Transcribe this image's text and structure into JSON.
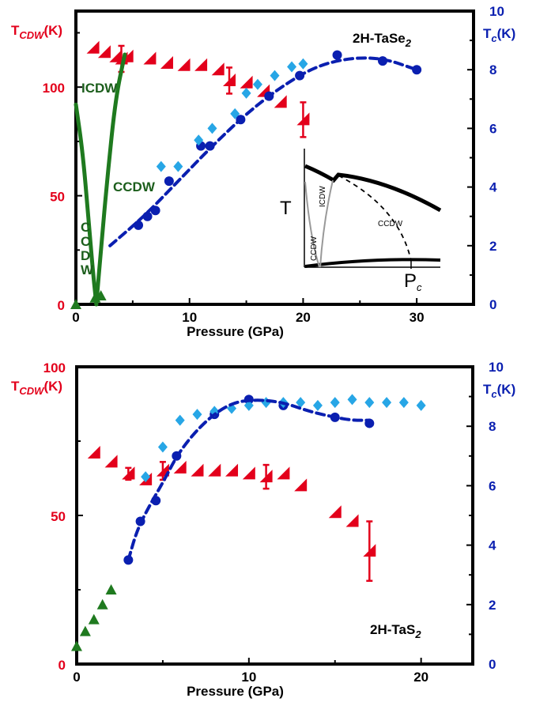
{
  "colors": {
    "tcdw": "#e3001b",
    "tc": "#0a1fb0",
    "tc_diamond": "#27a6e6",
    "green": "#1f7a1f",
    "dark_green": "#1c5e1c"
  },
  "chart_data": [
    {
      "type": "scatter",
      "annotation": "2H-TaSe",
      "annotation_sub": "2",
      "xlabel": "Pressure (GPa)",
      "ylabel_left": "T",
      "ylabel_left_sub": "CDW",
      "ylabel_left_unit": "(K)",
      "ylabel_right": "T",
      "ylabel_right_sub": "c",
      "ylabel_right_unit": "(K)",
      "xlim": [
        0,
        35
      ],
      "ylim_left": [
        0,
        135
      ],
      "ylim_right": [
        0,
        10
      ],
      "xticks": [
        0,
        10,
        20,
        30
      ],
      "yticks_left": [
        0,
        50,
        100
      ],
      "yticks_right": [
        0,
        2,
        4,
        6,
        8,
        10
      ],
      "phase_labels": {
        "icdw": "ICDW",
        "ccdw": "CCDW",
        "ccdw_vertical": [
          "C",
          "C",
          "D",
          "W"
        ]
      },
      "series": [
        {
          "name": "T_CDW",
          "marker": "triangle",
          "axis": "left",
          "points": [
            [
              1.5,
              118
            ],
            [
              2.5,
              116
            ],
            [
              3.5,
              114
            ],
            [
              4.5,
              114
            ],
            [
              6.5,
              113
            ],
            [
              8,
              111
            ],
            [
              9.5,
              110
            ],
            [
              11,
              110
            ],
            [
              12.5,
              108
            ],
            [
              15,
              102
            ],
            [
              16.5,
              98
            ],
            [
              18,
              93
            ]
          ],
          "errorbar_points": [
            [
              4,
              113,
              6
            ],
            [
              13.5,
              103,
              6
            ],
            [
              20,
              85,
              8
            ]
          ]
        },
        {
          "name": "T_c circles",
          "marker": "circle",
          "axis": "right",
          "points": [
            [
              5.5,
              2.7
            ],
            [
              6.3,
              3.0
            ],
            [
              7,
              3.2
            ],
            [
              8.2,
              4.2
            ],
            [
              11,
              5.4
            ],
            [
              11.8,
              5.4
            ],
            [
              14.5,
              6.3
            ],
            [
              17,
              7.1
            ],
            [
              19.7,
              7.8
            ],
            [
              23,
              8.5
            ],
            [
              27,
              8.3
            ],
            [
              30,
              8.0
            ]
          ]
        },
        {
          "name": "T_c diamonds",
          "marker": "diamond",
          "axis": "right",
          "points": [
            [
              7.5,
              4.7
            ],
            [
              9,
              4.7
            ],
            [
              10.8,
              5.6
            ],
            [
              12,
              6.0
            ],
            [
              14,
              6.5
            ],
            [
              15,
              7.2
            ],
            [
              16,
              7.5
            ],
            [
              17.5,
              7.8
            ],
            [
              19,
              8.1
            ],
            [
              20,
              8.2
            ]
          ]
        },
        {
          "name": "Tc dashed fit",
          "style": "dashed",
          "axis": "right",
          "points": [
            [
              3,
              2.0
            ],
            [
              6,
              3.0
            ],
            [
              9,
              4.2
            ],
            [
              12,
              5.4
            ],
            [
              15,
              6.5
            ],
            [
              18,
              7.4
            ],
            [
              21,
              8.1
            ],
            [
              24,
              8.4
            ],
            [
              27,
              8.4
            ],
            [
              30,
              8.0
            ]
          ]
        },
        {
          "name": "ICDW line",
          "style": "solid",
          "axis": "left",
          "points": [
            [
              1.8,
              0
            ],
            [
              2.2,
              25
            ],
            [
              2.8,
              60
            ],
            [
              3.5,
              95
            ],
            [
              4.3,
              115
            ]
          ]
        },
        {
          "name": "CCDW line",
          "style": "solid",
          "axis": "left",
          "points": [
            [
              0,
              92
            ],
            [
              0.6,
              70
            ],
            [
              1.1,
              40
            ],
            [
              1.5,
              15
            ],
            [
              1.8,
              0
            ]
          ]
        }
      ],
      "inset": {
        "y_label": "T",
        "x_label": "P",
        "x_label_sub": "c",
        "labels": [
          "ICDW",
          "CCDW",
          "CCDW"
        ]
      }
    },
    {
      "type": "scatter",
      "annotation": "2H-TaS",
      "annotation_sub": "2",
      "xlabel": "Pressure (GPa)",
      "ylabel_left": "T",
      "ylabel_left_sub": "CDW",
      "ylabel_left_unit": "(K)",
      "ylabel_right": "T",
      "ylabel_right_sub": "c",
      "ylabel_right_unit": "(K)",
      "xlim": [
        0,
        23
      ],
      "ylim_left": [
        0,
        100
      ],
      "ylim_right": [
        0,
        10
      ],
      "xticks": [
        0,
        10,
        20
      ],
      "yticks_left": [
        0,
        50,
        100
      ],
      "yticks_right": [
        0,
        2,
        4,
        6,
        8,
        10
      ],
      "series": [
        {
          "name": "T_CDW",
          "marker": "triangle",
          "axis": "left",
          "points": [
            [
              1,
              71
            ],
            [
              2,
              68
            ],
            [
              3,
              64
            ],
            [
              4,
              62
            ],
            [
              6,
              66
            ],
            [
              7,
              65
            ],
            [
              8,
              65
            ],
            [
              9,
              65
            ],
            [
              10,
              64
            ],
            [
              12,
              64
            ],
            [
              13,
              60
            ],
            [
              15,
              51
            ],
            [
              16,
              48
            ]
          ],
          "errorbar_points": [
            [
              3,
              64,
              2
            ],
            [
              5,
              65,
              3
            ],
            [
              11,
              63,
              4
            ],
            [
              17,
              38,
              10
            ]
          ]
        },
        {
          "name": "T_c circles",
          "marker": "circle",
          "axis": "right",
          "points": [
            [
              3,
              3.5
            ],
            [
              3.7,
              4.8
            ],
            [
              4.6,
              5.5
            ],
            [
              5.8,
              7.0
            ],
            [
              8,
              8.4
            ],
            [
              10,
              8.9
            ],
            [
              12,
              8.7
            ],
            [
              15,
              8.3
            ],
            [
              17,
              8.1
            ]
          ]
        },
        {
          "name": "T_c diamonds",
          "marker": "diamond",
          "axis": "right",
          "points": [
            [
              4,
              6.3
            ],
            [
              5,
              7.3
            ],
            [
              6,
              8.2
            ],
            [
              7,
              8.4
            ],
            [
              8,
              8.5
            ],
            [
              9,
              8.6
            ],
            [
              10,
              8.7
            ],
            [
              11,
              8.8
            ],
            [
              12,
              8.8
            ],
            [
              13,
              8.8
            ],
            [
              14,
              8.7
            ],
            [
              15,
              8.8
            ],
            [
              16,
              8.9
            ],
            [
              17,
              8.8
            ],
            [
              18,
              8.8
            ],
            [
              19,
              8.8
            ],
            [
              20,
              8.7
            ]
          ]
        },
        {
          "name": "Tc dashed fit",
          "style": "dashed",
          "axis": "right",
          "points": [
            [
              3,
              3.5
            ],
            [
              3.5,
              4.5
            ],
            [
              4.2,
              5.3
            ],
            [
              5,
              6.1
            ],
            [
              6,
              7.2
            ],
            [
              7.5,
              8.2
            ],
            [
              9,
              8.8
            ],
            [
              10.5,
              8.9
            ],
            [
              12,
              8.8
            ],
            [
              13.5,
              8.5
            ],
            [
              15,
              8.3
            ],
            [
              16,
              8.2
            ],
            [
              17,
              8.2
            ]
          ]
        },
        {
          "name": "T_CDW green",
          "marker": "triangle-up",
          "axis": "left",
          "points": [
            [
              0,
              6
            ],
            [
              0.5,
              11
            ],
            [
              1,
              15
            ],
            [
              1.5,
              20
            ],
            [
              2,
              25
            ]
          ]
        }
      ]
    }
  ]
}
